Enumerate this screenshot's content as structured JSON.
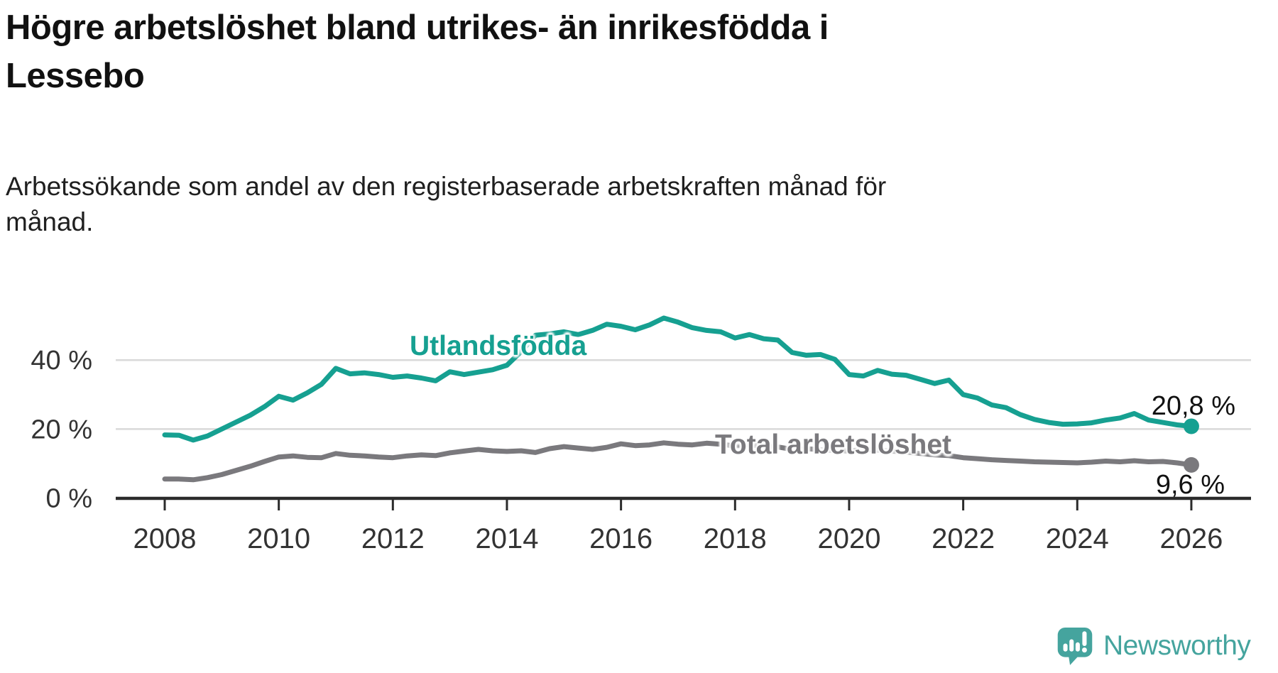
{
  "title": {
    "lines": [
      "Högre arbetslöshet bland utrikes- än inrikesfödda i",
      "Lessebo"
    ]
  },
  "subtitle": {
    "lines": [
      "Arbetssökande som andel av den registerbaserade arbetskraften månad för",
      "månad."
    ]
  },
  "chart_data": {
    "type": "line",
    "title": "Högre arbetslöshet bland utrikes- än inrikesfödda i Lessebo",
    "subtitle": "Arbetssökande som andel av den registerbaserade arbetskraften månad för månad.",
    "xlabel": "",
    "ylabel": "",
    "xlim": [
      2007.15,
      2027.05
    ],
    "ylim": [
      0,
      58
    ],
    "grid": "horizontal",
    "x_ticks": [
      2008,
      2010,
      2012,
      2014,
      2016,
      2018,
      2020,
      2022,
      2024,
      2026
    ],
    "y_ticks": [
      {
        "label": "0 %",
        "value": 0
      },
      {
        "label": "20 %",
        "value": 20
      },
      {
        "label": "40 %",
        "value": 40
      }
    ],
    "x": [
      2008.0,
      2008.25,
      2008.5,
      2008.75,
      2009.0,
      2009.25,
      2009.5,
      2009.75,
      2010.0,
      2010.25,
      2010.5,
      2010.75,
      2011.0,
      2011.25,
      2011.5,
      2011.75,
      2012.0,
      2012.25,
      2012.5,
      2012.75,
      2013.0,
      2013.25,
      2013.5,
      2013.75,
      2014.0,
      2014.25,
      2014.5,
      2014.75,
      2015.0,
      2015.25,
      2015.5,
      2015.75,
      2016.0,
      2016.25,
      2016.5,
      2016.75,
      2017.0,
      2017.25,
      2017.5,
      2017.75,
      2018.0,
      2018.25,
      2018.5,
      2018.75,
      2019.0,
      2019.25,
      2019.5,
      2019.75,
      2020.0,
      2020.25,
      2020.5,
      2020.75,
      2021.0,
      2021.25,
      2021.5,
      2021.75,
      2022.0,
      2022.25,
      2022.5,
      2022.75,
      2023.0,
      2023.25,
      2023.5,
      2023.75,
      2024.0,
      2024.25,
      2024.5,
      2024.75,
      2025.0,
      2025.25,
      2025.5,
      2025.75,
      2026.0
    ],
    "series": [
      {
        "name": "Utlandsfödda",
        "color": "#16a091",
        "end_label": "20,8 %",
        "end_value": 20.8,
        "values": [
          18.3,
          18.2,
          16.8,
          18.0,
          20.0,
          22.0,
          24.0,
          26.5,
          29.5,
          28.4,
          30.5,
          33.0,
          37.6,
          36.0,
          36.3,
          35.8,
          35.0,
          35.4,
          34.8,
          34.0,
          36.6,
          35.8,
          36.5,
          37.2,
          38.5,
          42.5,
          47.2,
          47.6,
          48.2,
          47.4,
          48.6,
          50.4,
          49.8,
          48.8,
          50.2,
          52.2,
          51.0,
          49.4,
          48.6,
          48.2,
          46.4,
          47.4,
          46.2,
          45.8,
          42.2,
          41.4,
          41.6,
          40.2,
          35.8,
          35.4,
          37.0,
          35.9,
          35.6,
          34.4,
          33.2,
          34.2,
          30.0,
          29.0,
          27.0,
          26.2,
          24.2,
          22.8,
          21.9,
          21.4,
          21.5,
          21.8,
          22.6,
          23.2,
          24.5,
          22.6,
          21.9,
          21.2,
          20.8
        ]
      },
      {
        "name": "Total arbetslöshet",
        "color": "#7a797d",
        "end_label": "9,6 %",
        "end_value": 9.6,
        "values": [
          5.5,
          5.5,
          5.3,
          5.9,
          6.8,
          8.0,
          9.2,
          10.6,
          11.9,
          12.2,
          11.8,
          11.7,
          12.9,
          12.4,
          12.2,
          11.9,
          11.7,
          12.2,
          12.5,
          12.3,
          13.1,
          13.6,
          14.1,
          13.7,
          13.5,
          13.7,
          13.2,
          14.3,
          14.9,
          14.5,
          14.1,
          14.7,
          15.7,
          15.2,
          15.4,
          16.0,
          15.6,
          15.4,
          15.9,
          15.6,
          15.1,
          15.4,
          15.0,
          14.8,
          14.1,
          14.3,
          14.0,
          13.8,
          13.6,
          14.1,
          13.9,
          13.6,
          13.3,
          12.9,
          12.5,
          12.3,
          11.7,
          11.4,
          11.1,
          10.9,
          10.7,
          10.5,
          10.4,
          10.3,
          10.2,
          10.4,
          10.7,
          10.5,
          10.8,
          10.5,
          10.6,
          10.2,
          9.6
        ]
      }
    ],
    "legend_position": "inline-labels"
  },
  "branding": {
    "logo_text": "Newsworthy",
    "logo_color": "#45a49e",
    "bar-chart-icon": "speech-bubble with mini bar chart and exclamation mark"
  },
  "colors": {
    "background": "#ffffff",
    "accent_teal": "#16a091",
    "series_gray": "#7a797d",
    "grid": "#d9d9d9",
    "axis": "#2b2b2b",
    "tick_label": "#333333",
    "title_text": "#111111"
  }
}
